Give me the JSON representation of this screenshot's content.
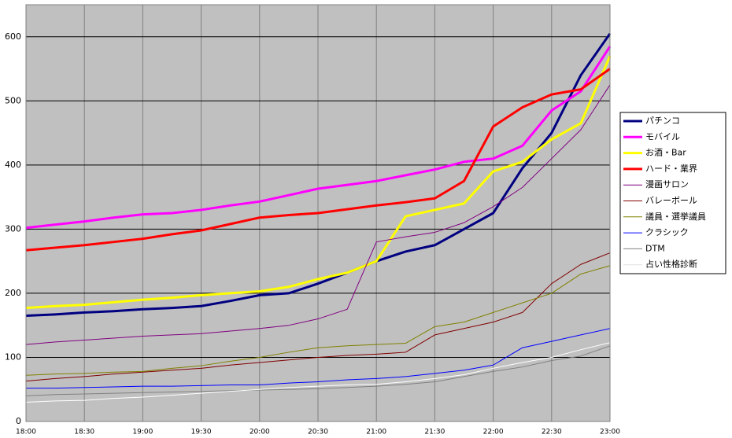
{
  "chart_data": {
    "type": "line",
    "x": [
      "18:00",
      "18:15",
      "18:30",
      "18:45",
      "19:00",
      "19:15",
      "19:30",
      "19:45",
      "20:00",
      "20:15",
      "20:30",
      "20:45",
      "21:00",
      "21:15",
      "21:30",
      "21:45",
      "22:00",
      "22:15",
      "22:30",
      "22:45",
      "23:00"
    ],
    "xlim": [
      "18:00",
      "23:00"
    ],
    "xticks": [
      "18:00",
      "18:30",
      "19:00",
      "19:30",
      "20:00",
      "20:30",
      "21:00",
      "21:30",
      "22:00",
      "22:30",
      "23:00"
    ],
    "ylim": [
      0,
      650
    ],
    "yticks": [
      0,
      100,
      200,
      300,
      400,
      500,
      600
    ],
    "grid": true,
    "legend": "right",
    "series": [
      {
        "name": "パチンコ",
        "color": "#000080",
        "width": 3,
        "values": [
          165,
          167,
          170,
          172,
          175,
          177,
          180,
          188,
          197,
          200,
          215,
          232,
          250,
          265,
          275,
          300,
          325,
          395,
          450,
          540,
          605
        ]
      },
      {
        "name": "モバイル",
        "color": "#ff00ff",
        "width": 3,
        "values": [
          302,
          307,
          312,
          318,
          323,
          325,
          330,
          337,
          343,
          353,
          363,
          369,
          375,
          384,
          393,
          405,
          410,
          430,
          485,
          515,
          585
        ]
      },
      {
        "name": "お酒・Bar",
        "color": "#ffff00",
        "width": 3,
        "values": [
          177,
          180,
          182,
          186,
          190,
          193,
          197,
          200,
          203,
          210,
          222,
          232,
          250,
          320,
          330,
          340,
          390,
          405,
          440,
          465,
          570
        ]
      },
      {
        "name": "ハード・業界",
        "color": "#ff0000",
        "width": 3,
        "values": [
          267,
          271,
          275,
          280,
          285,
          292,
          298,
          308,
          318,
          322,
          325,
          331,
          337,
          342,
          348,
          375,
          460,
          490,
          510,
          518,
          550
        ]
      },
      {
        "name": "漫画サロン",
        "color": "#800080",
        "width": 1,
        "values": [
          120,
          124,
          127,
          130,
          133,
          135,
          137,
          141,
          145,
          150,
          160,
          175,
          280,
          288,
          295,
          310,
          335,
          365,
          410,
          455,
          525
        ]
      },
      {
        "name": "バレーボール",
        "color": "#800000",
        "width": 1,
        "values": [
          63,
          67,
          70,
          74,
          77,
          80,
          83,
          88,
          92,
          96,
          100,
          103,
          105,
          108,
          135,
          145,
          155,
          170,
          215,
          245,
          263
        ]
      },
      {
        "name": "議員・選挙議員",
        "color": "#808000",
        "width": 1,
        "values": [
          72,
          74,
          75,
          77,
          78,
          83,
          87,
          94,
          100,
          108,
          115,
          118,
          120,
          122,
          148,
          155,
          170,
          185,
          200,
          230,
          243
        ]
      },
      {
        "name": "クラシック",
        "color": "#0000ff",
        "width": 1,
        "values": [
          52,
          52,
          53,
          54,
          55,
          55,
          56,
          57,
          57,
          60,
          62,
          65,
          67,
          70,
          75,
          80,
          88,
          115,
          125,
          135,
          145
        ]
      },
      {
        "name": "DTM",
        "color": "#808080",
        "width": 1,
        "values": [
          40,
          42,
          43,
          44,
          45,
          46,
          47,
          48,
          49,
          50,
          51,
          53,
          55,
          58,
          62,
          70,
          78,
          85,
          95,
          102,
          118
        ]
      },
      {
        "name": "占い性格診断",
        "color": "#ffffff",
        "width": 1,
        "values": [
          30,
          32,
          33,
          36,
          38,
          41,
          44,
          47,
          50,
          53,
          55,
          57,
          58,
          62,
          67,
          73,
          83,
          92,
          100,
          112,
          123
        ]
      }
    ]
  }
}
